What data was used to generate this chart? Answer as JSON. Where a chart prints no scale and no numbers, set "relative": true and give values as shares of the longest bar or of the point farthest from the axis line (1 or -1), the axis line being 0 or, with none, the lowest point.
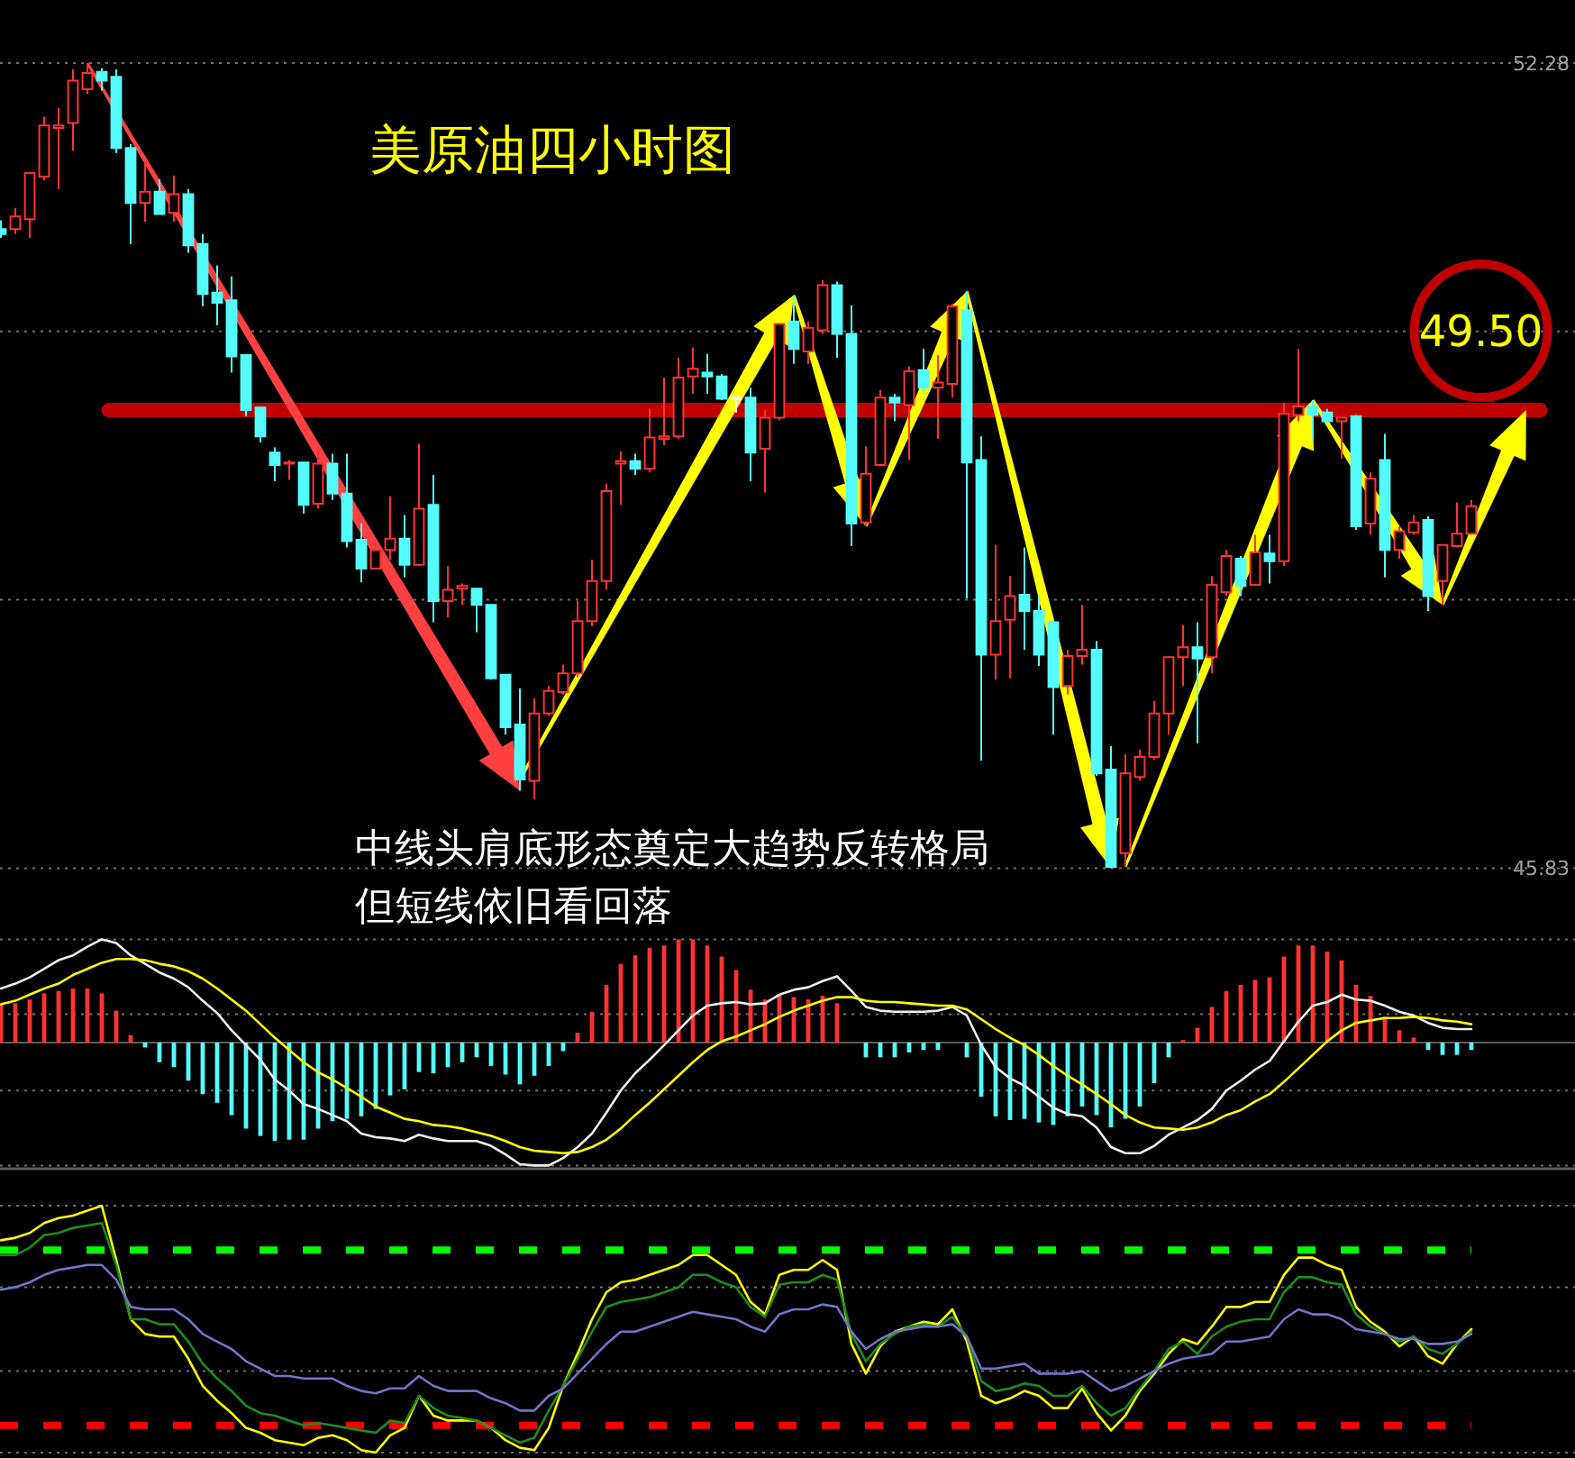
{
  "chart_data": [
    {
      "type": "candlestick",
      "title": "美原油四小时图",
      "categories": [
        null,
        null,
        null,
        null,
        null,
        null,
        null,
        null,
        null,
        null,
        null,
        null,
        null,
        null,
        null,
        null,
        null,
        null,
        null,
        null,
        null,
        null,
        null,
        null,
        null,
        null,
        null,
        null,
        null,
        null,
        null,
        null,
        null,
        null,
        null,
        null,
        null,
        null,
        null,
        null,
        null,
        null,
        null,
        null,
        null,
        null,
        null,
        null,
        null,
        null,
        null,
        null,
        null,
        null,
        null,
        null,
        null,
        null,
        null,
        null,
        null,
        null,
        null,
        null,
        null,
        null,
        null,
        null,
        null,
        null,
        null,
        null,
        null,
        null,
        null,
        null,
        null,
        null,
        null,
        null,
        null,
        null,
        null,
        null,
        null,
        null,
        null,
        null,
        null,
        null,
        null,
        null,
        null,
        null,
        null,
        null,
        null,
        null,
        null,
        null,
        null,
        null,
        null
      ],
      "ohlc": [
        [
          50.95,
          51.02,
          50.88,
          50.91
        ],
        [
          50.95,
          51.12,
          50.91,
          51.05
        ],
        [
          51.03,
          51.41,
          50.88,
          51.4
        ],
        [
          51.37,
          51.85,
          51.34,
          51.78
        ],
        [
          51.76,
          51.92,
          51.27,
          51.78
        ],
        [
          51.8,
          52.23,
          51.58,
          52.14
        ],
        [
          52.07,
          52.28,
          52.03,
          52.2
        ],
        [
          52.21,
          52.24,
          52.06,
          52.14
        ],
        [
          52.17,
          52.23,
          51.56,
          51.6
        ],
        [
          51.6,
          51.63,
          50.83,
          51.16
        ],
        [
          51.16,
          51.49,
          51.01,
          51.25
        ],
        [
          51.25,
          51.35,
          51.07,
          51.07
        ],
        [
          51.08,
          51.38,
          51.01,
          51.23
        ],
        [
          51.23,
          51.27,
          50.76,
          50.82
        ],
        [
          50.83,
          50.91,
          50.33,
          50.43
        ],
        [
          50.44,
          50.66,
          50.18,
          50.36
        ],
        [
          50.38,
          50.57,
          49.8,
          49.93
        ],
        [
          49.94,
          49.94,
          49.45,
          49.5
        ],
        [
          49.52,
          49.52,
          49.24,
          49.29
        ],
        [
          49.16,
          49.2,
          48.93,
          49.06
        ],
        [
          49.07,
          49.1,
          48.94,
          49.08
        ],
        [
          49.08,
          49.08,
          48.67,
          48.74
        ],
        [
          48.75,
          49.17,
          48.71,
          49.07
        ],
        [
          49.07,
          49.15,
          48.78,
          48.83
        ],
        [
          48.83,
          49.15,
          48.4,
          48.45
        ],
        [
          48.46,
          48.59,
          48.12,
          48.23
        ],
        [
          48.23,
          48.42,
          48.23,
          48.38
        ],
        [
          48.38,
          48.81,
          48.3,
          48.47
        ],
        [
          48.47,
          48.66,
          48.16,
          48.26
        ],
        [
          48.26,
          49.23,
          48.25,
          48.71
        ],
        [
          48.74,
          48.98,
          47.8,
          47.97
        ],
        [
          47.97,
          48.25,
          47.84,
          48.06
        ],
        [
          48.07,
          48.11,
          47.94,
          48.09
        ],
        [
          48.07,
          48.07,
          47.72,
          47.94
        ],
        [
          47.94,
          47.94,
          47.34,
          47.35
        ],
        [
          47.38,
          47.38,
          46.9,
          46.96
        ],
        [
          46.98,
          47.27,
          46.45,
          46.54
        ],
        [
          46.53,
          47.19,
          46.38,
          47.07
        ],
        [
          47.07,
          47.29,
          47.05,
          47.25
        ],
        [
          47.24,
          47.46,
          47.22,
          47.39
        ],
        [
          47.39,
          47.97,
          47.36,
          47.81
        ],
        [
          47.81,
          48.3,
          47.77,
          48.13
        ],
        [
          48.13,
          48.91,
          48.06,
          48.85
        ],
        [
          49.07,
          49.17,
          48.74,
          49.09
        ],
        [
          49.09,
          49.15,
          48.98,
          49.03
        ],
        [
          49.03,
          49.51,
          49.0,
          49.28
        ],
        [
          49.27,
          49.76,
          49.22,
          49.29
        ],
        [
          49.29,
          49.92,
          49.27,
          49.76
        ],
        [
          49.77,
          50.0,
          49.63,
          49.83
        ],
        [
          49.8,
          49.95,
          49.63,
          49.77
        ],
        [
          49.77,
          49.79,
          49.58,
          49.59
        ],
        [
          49.6,
          49.6,
          49.48,
          49.6
        ],
        [
          49.6,
          49.68,
          48.93,
          49.16
        ],
        [
          49.19,
          49.5,
          48.84,
          49.44
        ],
        [
          49.44,
          50.19,
          49.42,
          50.19
        ],
        [
          50.21,
          50.42,
          49.87,
          49.99
        ],
        [
          49.97,
          50.21,
          49.87,
          50.16
        ],
        [
          50.14,
          50.54,
          50.11,
          50.5
        ],
        [
          50.5,
          50.53,
          49.92,
          50.11
        ],
        [
          50.11,
          50.34,
          48.41,
          48.59
        ],
        [
          48.6,
          49.21,
          48.57,
          48.99
        ],
        [
          49.06,
          49.66,
          49.05,
          49.6
        ],
        [
          49.6,
          49.63,
          49.41,
          49.56
        ],
        [
          49.54,
          49.85,
          49.1,
          49.81
        ],
        [
          49.82,
          49.99,
          49.63,
          49.68
        ],
        [
          49.68,
          49.94,
          49.27,
          49.72
        ],
        [
          49.71,
          50.35,
          49.6,
          50.33
        ],
        [
          50.3,
          50.45,
          47.99,
          49.08
        ],
        [
          49.1,
          49.29,
          46.69,
          47.54
        ],
        [
          47.54,
          48.42,
          47.34,
          47.81
        ],
        [
          47.82,
          48.17,
          47.35,
          48.01
        ],
        [
          48.02,
          48.4,
          47.58,
          47.89
        ],
        [
          47.89,
          48.01,
          47.45,
          47.54
        ],
        [
          47.8,
          47.82,
          46.9,
          47.28
        ],
        [
          47.29,
          47.58,
          47.22,
          47.53
        ],
        [
          47.53,
          47.94,
          47.46,
          47.58
        ],
        [
          47.58,
          47.65,
          46.57,
          46.59
        ],
        [
          46.62,
          46.81,
          45.83,
          45.84
        ],
        [
          45.95,
          46.74,
          45.84,
          46.59
        ],
        [
          46.56,
          46.78,
          46.53,
          46.72
        ],
        [
          46.72,
          47.17,
          46.7,
          47.07
        ],
        [
          47.07,
          47.53,
          46.9,
          47.52
        ],
        [
          47.52,
          47.78,
          47.29,
          47.6
        ],
        [
          47.6,
          47.8,
          46.83,
          47.51
        ],
        [
          47.52,
          48.17,
          47.39,
          48.1
        ],
        [
          48.04,
          48.38,
          48.01,
          48.33
        ],
        [
          48.31,
          48.33,
          48.01,
          48.09
        ],
        [
          48.1,
          48.5,
          48.09,
          48.36
        ],
        [
          48.35,
          48.5,
          48.11,
          48.29
        ],
        [
          48.29,
          49.56,
          48.25,
          49.47
        ],
        [
          49.46,
          49.99,
          49.41,
          49.53
        ],
        [
          49.53,
          49.58,
          49.27,
          49.46
        ],
        [
          49.48,
          49.51,
          49.39,
          49.41
        ],
        [
          49.41,
          49.44,
          49.11,
          49.44
        ],
        [
          49.45,
          49.46,
          48.54,
          48.57
        ],
        [
          48.59,
          49.0,
          48.5,
          48.95
        ],
        [
          49.1,
          49.31,
          48.16,
          48.38
        ],
        [
          48.38,
          48.57,
          48.31,
          48.53
        ],
        [
          48.52,
          48.66,
          48.5,
          48.6
        ],
        [
          48.62,
          48.65,
          47.89,
          48.01
        ],
        [
          48.13,
          48.42,
          47.94,
          48.42
        ],
        [
          48.41,
          48.76,
          48.4,
          48.51
        ],
        [
          48.51,
          48.78,
          48.5,
          48.73
        ]
      ],
      "colors": [
        "#54fcfc",
        "#ff3232",
        "#ff3232",
        "#ff3232",
        "#ff3232",
        "#ff3232",
        "#ff3232",
        "#54fcfc",
        "#54fcfc",
        "#54fcfc",
        "#ff3232",
        "#54fcfc",
        "#ff3232",
        "#54fcfc",
        "#54fcfc",
        "#54fcfc",
        "#54fcfc",
        "#54fcfc",
        "#54fcfc",
        "#54fcfc",
        "#ff3232",
        "#54fcfc",
        "#ff3232",
        "#54fcfc",
        "#54fcfc",
        "#54fcfc",
        "#ff3232",
        "#ff3232",
        "#54fcfc",
        "#ff3232",
        "#54fcfc",
        "#ff3232",
        "#ff3232",
        "#54fcfc",
        "#54fcfc",
        "#54fcfc",
        "#54fcfc",
        "#ff3232",
        "#ff3232",
        "#ff3232",
        "#ff3232",
        "#ff3232",
        "#ff3232",
        "#ff3232",
        "#54fcfc",
        "#ff3232",
        "#ff3232",
        "#ff3232",
        "#ff3232",
        "#54fcfc",
        "#54fcfc",
        "#ffffff",
        "#54fcfc",
        "#ff3232",
        "#ff3232",
        "#54fcfc",
        "#ff3232",
        "#ff3232",
        "#54fcfc",
        "#54fcfc",
        "#ff3232",
        "#ff3232",
        "#54fcfc",
        "#ff3232",
        "#54fcfc",
        "#ff3232",
        "#ff3232",
        "#54fcfc",
        "#54fcfc",
        "#ff3232",
        "#ff3232",
        "#54fcfc",
        "#54fcfc",
        "#54fcfc",
        "#ff3232",
        "#ff3232",
        "#54fcfc",
        "#54fcfc",
        "#ff3232",
        "#ff3232",
        "#ff3232",
        "#ff3232",
        "#ff3232",
        "#54fcfc",
        "#ff3232",
        "#ff3232",
        "#54fcfc",
        "#ff3232",
        "#54fcfc",
        "#ff3232",
        "#ff3232",
        "#54fcfc",
        "#54fcfc",
        "#ff3232",
        "#54fcfc",
        "#ff3232",
        "#54fcfc",
        "#ff3232",
        "#ff3232",
        "#54fcfc",
        "#ff3232",
        "#ff3232",
        "#ff3232"
      ],
      "ylim": [
        45.83,
        52.28
      ],
      "yticks": [
        {
          "value": 52.28,
          "label": "52.28"
        },
        {
          "value": 50.13,
          "label": null
        },
        {
          "value": 47.98,
          "label": null
        },
        {
          "value": 45.83,
          "label": "45.83"
        }
      ],
      "grid": "y",
      "ref_lines": [
        {
          "axis": "y",
          "value": 49.5,
          "label": "49.50",
          "color": "#c00000"
        }
      ],
      "annotations": [
        "中线头肩底形态奠定大趋势反转格局",
        "但短线依旧看回落"
      ]
    },
    {
      "type": "line",
      "relative": true,
      "categories": [
        null,
        null,
        null,
        null,
        null,
        null,
        null,
        null,
        null,
        null,
        null,
        null,
        null,
        null,
        null,
        null,
        null,
        null,
        null,
        null,
        null,
        null,
        null,
        null,
        null,
        null,
        null,
        null,
        null,
        null,
        null,
        null,
        null,
        null,
        null,
        null,
        null,
        null,
        null,
        null,
        null,
        null,
        null,
        null,
        null,
        null,
        null,
        null,
        null,
        null,
        null,
        null,
        null,
        null,
        null,
        null,
        null,
        null,
        null,
        null,
        null,
        null,
        null,
        null,
        null,
        null,
        null,
        null,
        null,
        null,
        null,
        null,
        null,
        null,
        null,
        null,
        null,
        null,
        null,
        null,
        null,
        null,
        null,
        null,
        null,
        null,
        null,
        null,
        null,
        null,
        null,
        null,
        null,
        null,
        null,
        null,
        null,
        null,
        null,
        null,
        null,
        null,
        null
      ],
      "series": [
        {
          "type": "bar",
          "values": [
            0.31,
            0.32,
            0.35,
            0.4,
            0.42,
            0.44,
            0.44,
            0.4,
            0.26,
            0.06,
            -0.04,
            -0.16,
            -0.2,
            -0.31,
            -0.42,
            -0.49,
            -0.59,
            -0.7,
            -0.76,
            -0.8,
            -0.79,
            -0.79,
            -0.7,
            -0.64,
            -0.62,
            -0.6,
            -0.54,
            -0.43,
            -0.38,
            -0.24,
            -0.25,
            -0.2,
            -0.16,
            -0.12,
            -0.19,
            -0.26,
            -0.34,
            -0.27,
            -0.19,
            -0.07,
            0.08,
            0.25,
            0.47,
            0.64,
            0.71,
            0.77,
            0.79,
            0.84,
            0.84,
            0.79,
            0.7,
            0.59,
            0.43,
            0.35,
            0.39,
            0.37,
            0.35,
            0.38,
            0.32,
            null,
            -0.12,
            -0.12,
            -0.12,
            -0.08,
            -0.06,
            -0.06,
            null,
            -0.12,
            -0.44,
            -0.6,
            -0.63,
            -0.62,
            -0.65,
            -0.67,
            -0.6,
            -0.52,
            -0.59,
            -0.69,
            -0.62,
            -0.52,
            -0.33,
            -0.12,
            0.02,
            0.12,
            0.29,
            0.42,
            0.47,
            0.51,
            0.53,
            0.7,
            0.79,
            0.79,
            0.74,
            0.67,
            0.47,
            0.38,
            0.21,
            0.1,
            0.04,
            -0.06,
            -0.1,
            -0.1,
            -0.06
          ],
          "colors": [
            "#ff3232",
            "#ff3232",
            "#ff3232",
            "#ff3232",
            "#ff3232",
            "#ff3232",
            "#ff3232",
            "#ff3232",
            "#ff3232",
            "#ff3232",
            "#54fcfc",
            "#54fcfc",
            "#54fcfc",
            "#54fcfc",
            "#54fcfc",
            "#54fcfc",
            "#54fcfc",
            "#54fcfc",
            "#54fcfc",
            "#54fcfc",
            "#54fcfc",
            "#54fcfc",
            "#54fcfc",
            "#54fcfc",
            "#54fcfc",
            "#54fcfc",
            "#54fcfc",
            "#54fcfc",
            "#54fcfc",
            "#54fcfc",
            "#54fcfc",
            "#54fcfc",
            "#54fcfc",
            "#54fcfc",
            "#54fcfc",
            "#54fcfc",
            "#54fcfc",
            "#54fcfc",
            "#54fcfc",
            "#54fcfc",
            "#ff3232",
            "#ff3232",
            "#ff3232",
            "#ff3232",
            "#ff3232",
            "#ff3232",
            "#ff3232",
            "#ff3232",
            "#ff3232",
            "#ff3232",
            "#ff3232",
            "#ff3232",
            "#ff3232",
            "#ff3232",
            "#ff3232",
            "#ff3232",
            "#ff3232",
            "#ff3232",
            "#ff3232",
            null,
            "#54fcfc",
            "#54fcfc",
            "#54fcfc",
            "#54fcfc",
            "#54fcfc",
            "#54fcfc",
            null,
            "#54fcfc",
            "#54fcfc",
            "#54fcfc",
            "#54fcfc",
            "#54fcfc",
            "#54fcfc",
            "#54fcfc",
            "#54fcfc",
            "#54fcfc",
            "#54fcfc",
            "#54fcfc",
            "#54fcfc",
            "#54fcfc",
            "#54fcfc",
            "#54fcfc",
            "#ff3232",
            "#ff3232",
            "#ff3232",
            "#ff3232",
            "#ff3232",
            "#ff3232",
            "#ff3232",
            "#ff3232",
            "#ff3232",
            "#ff3232",
            "#ff3232",
            "#ff3232",
            "#ff3232",
            "#ff3232",
            "#ff3232",
            "#ff3232",
            "#ff3232",
            "#54fcfc",
            "#54fcfc",
            "#54fcfc",
            "#54fcfc"
          ]
        },
        {
          "type": "line",
          "color": "#eeeeee",
          "values": [
            0.44,
            0.48,
            0.53,
            0.6,
            0.67,
            0.71,
            0.78,
            0.84,
            0.81,
            0.71,
            0.64,
            0.57,
            0.52,
            0.45,
            0.34,
            0.24,
            0.1,
            -0.02,
            -0.14,
            -0.3,
            -0.39,
            -0.5,
            -0.54,
            -0.59,
            -0.64,
            -0.74,
            -0.77,
            -0.78,
            -0.8,
            -0.75,
            -0.78,
            -0.8,
            -0.8,
            -0.8,
            -0.84,
            -0.91,
            -0.99,
            -1.0,
            -1.0,
            -0.94,
            -0.85,
            -0.74,
            -0.57,
            -0.39,
            -0.25,
            -0.14,
            -0.02,
            0.1,
            0.22,
            0.3,
            0.32,
            0.33,
            0.31,
            0.32,
            0.39,
            0.43,
            0.45,
            0.5,
            0.54,
            0.42,
            0.29,
            0.26,
            0.25,
            0.25,
            0.25,
            0.26,
            0.29,
            0.22,
            -0.02,
            -0.2,
            -0.29,
            -0.35,
            -0.44,
            -0.53,
            -0.58,
            -0.6,
            -0.69,
            -0.85,
            -0.9,
            -0.9,
            -0.84,
            -0.75,
            -0.69,
            -0.63,
            -0.54,
            -0.39,
            -0.31,
            -0.22,
            -0.15,
            0.01,
            0.17,
            0.3,
            0.33,
            0.39,
            0.35,
            0.34,
            0.3,
            0.25,
            0.22,
            0.16,
            0.12,
            0.11,
            0.11
          ]
        },
        {
          "type": "line",
          "color": "#ffff00",
          "values": [
            0.31,
            0.34,
            0.39,
            0.44,
            0.48,
            0.55,
            0.6,
            0.65,
            0.68,
            0.68,
            0.67,
            0.64,
            0.62,
            0.58,
            0.52,
            0.44,
            0.35,
            0.26,
            0.15,
            0.04,
            -0.06,
            -0.16,
            -0.24,
            -0.3,
            -0.37,
            -0.44,
            -0.52,
            -0.57,
            -0.62,
            -0.64,
            -0.67,
            -0.68,
            -0.7,
            -0.73,
            -0.76,
            -0.8,
            -0.85,
            -0.88,
            -0.89,
            -0.9,
            -0.89,
            -0.85,
            -0.79,
            -0.7,
            -0.59,
            -0.49,
            -0.38,
            -0.27,
            -0.16,
            -0.06,
            0.01,
            0.05,
            0.1,
            0.15,
            0.21,
            0.26,
            0.3,
            0.34,
            0.37,
            0.37,
            0.34,
            0.33,
            0.33,
            0.32,
            0.31,
            0.3,
            0.3,
            0.27,
            0.19,
            0.11,
            0.04,
            -0.02,
            -0.1,
            -0.19,
            -0.27,
            -0.34,
            -0.42,
            -0.5,
            -0.59,
            -0.65,
            -0.69,
            -0.7,
            -0.71,
            -0.69,
            -0.65,
            -0.59,
            -0.55,
            -0.48,
            -0.42,
            -0.32,
            -0.21,
            -0.1,
            0.01,
            0.1,
            0.16,
            0.18,
            0.2,
            0.2,
            0.21,
            0.2,
            0.18,
            0.17,
            0.15
          ]
        }
      ],
      "ref_lines": [
        {
          "axis": "y",
          "value": 0.84,
          "color": "#707070",
          "line_style": "dotted"
        },
        {
          "axis": "y",
          "value": 0.23,
          "color": "#707070",
          "line_style": "dotted"
        },
        {
          "axis": "y",
          "value": -0.39,
          "color": "#707070",
          "line_style": "dotted"
        },
        {
          "axis": "y",
          "value": -1,
          "color": "#707070",
          "line_style": "dotted"
        }
      ]
    },
    {
      "type": "line",
      "relative": true,
      "categories": [
        null,
        null,
        null,
        null,
        null,
        null,
        null,
        null,
        null,
        null,
        null,
        null,
        null,
        null,
        null,
        null,
        null,
        null,
        null,
        null,
        null,
        null,
        null,
        null,
        null,
        null,
        null,
        null,
        null,
        null,
        null,
        null,
        null,
        null,
        null,
        null,
        null,
        null,
        null,
        null,
        null,
        null,
        null,
        null,
        null,
        null,
        null,
        null,
        null,
        null,
        null,
        null,
        null,
        null,
        null,
        null,
        null,
        null,
        null,
        null,
        null,
        null,
        null,
        null,
        null,
        null,
        null,
        null,
        null,
        null,
        null,
        null,
        null,
        null,
        null,
        null,
        null,
        null,
        null,
        null,
        null,
        null,
        null,
        null,
        null,
        null,
        null,
        null,
        null,
        null,
        null,
        null,
        null,
        null,
        null,
        null,
        null,
        null,
        null,
        null,
        null,
        null,
        null
      ],
      "series": [
        {
          "color": "#ffff00",
          "values": [
            0.86,
            0.87,
            0.89,
            0.93,
            0.95,
            0.96,
            0.98,
            1.0,
            0.78,
            0.54,
            0.48,
            0.47,
            0.47,
            0.38,
            0.27,
            0.21,
            0.16,
            0.1,
            0.08,
            0.05,
            0.04,
            0.03,
            0.06,
            0.07,
            0.05,
            0.01,
            0.0,
            0.07,
            0.1,
            0.23,
            0.15,
            0.13,
            0.13,
            0.13,
            0.1,
            0.05,
            0.02,
            0.01,
            0.1,
            0.27,
            0.4,
            0.54,
            0.65,
            0.69,
            0.7,
            0.72,
            0.74,
            0.76,
            0.8,
            0.8,
            0.76,
            0.72,
            0.61,
            0.56,
            0.72,
            0.74,
            0.74,
            0.78,
            0.74,
            0.44,
            0.32,
            0.43,
            0.49,
            0.51,
            0.53,
            0.52,
            0.58,
            0.45,
            0.23,
            0.2,
            0.22,
            0.25,
            0.23,
            0.18,
            0.18,
            0.26,
            0.16,
            0.09,
            0.15,
            0.25,
            0.32,
            0.4,
            0.46,
            0.44,
            0.51,
            0.59,
            0.59,
            0.61,
            0.61,
            0.72,
            0.79,
            0.79,
            0.76,
            0.74,
            0.59,
            0.53,
            0.49,
            0.43,
            0.47,
            0.39,
            0.36,
            0.44,
            0.5
          ]
        },
        {
          "color": "#1e8c1e",
          "values": [
            0.8,
            0.8,
            0.83,
            0.88,
            0.89,
            0.91,
            0.92,
            0.93,
            0.76,
            0.54,
            0.54,
            0.52,
            0.52,
            0.45,
            0.36,
            0.3,
            0.25,
            0.19,
            0.16,
            0.15,
            0.13,
            0.11,
            0.12,
            0.11,
            0.1,
            0.09,
            0.08,
            0.13,
            0.12,
            0.23,
            0.18,
            0.15,
            0.14,
            0.13,
            0.1,
            0.07,
            0.04,
            0.06,
            0.17,
            0.27,
            0.38,
            0.49,
            0.59,
            0.61,
            0.62,
            0.63,
            0.65,
            0.67,
            0.72,
            0.72,
            0.69,
            0.67,
            0.59,
            0.55,
            0.68,
            0.69,
            0.69,
            0.72,
            0.7,
            0.48,
            0.37,
            0.44,
            0.48,
            0.51,
            0.52,
            0.51,
            0.55,
            0.47,
            0.29,
            0.25,
            0.26,
            0.28,
            0.27,
            0.23,
            0.23,
            0.27,
            0.2,
            0.15,
            0.18,
            0.26,
            0.33,
            0.42,
            0.45,
            0.4,
            0.47,
            0.51,
            0.53,
            0.54,
            0.54,
            0.65,
            0.71,
            0.71,
            0.69,
            0.68,
            0.56,
            0.51,
            0.48,
            0.45,
            0.47,
            0.42,
            0.4,
            0.44,
            0.49
          ]
        },
        {
          "color": "#7373c8",
          "values": [
            0.66,
            0.67,
            0.69,
            0.72,
            0.74,
            0.75,
            0.76,
            0.76,
            0.7,
            0.59,
            0.58,
            0.58,
            0.58,
            0.54,
            0.48,
            0.45,
            0.42,
            0.37,
            0.34,
            0.31,
            0.31,
            0.3,
            0.3,
            0.3,
            0.27,
            0.25,
            0.24,
            0.26,
            0.26,
            0.31,
            0.27,
            0.25,
            0.25,
            0.25,
            0.22,
            0.2,
            0.17,
            0.17,
            0.23,
            0.26,
            0.32,
            0.38,
            0.44,
            0.49,
            0.49,
            0.51,
            0.53,
            0.55,
            0.57,
            0.56,
            0.55,
            0.54,
            0.51,
            0.49,
            0.56,
            0.58,
            0.58,
            0.6,
            0.59,
            0.49,
            0.42,
            0.46,
            0.49,
            0.5,
            0.51,
            0.51,
            0.52,
            0.47,
            0.34,
            0.34,
            0.35,
            0.36,
            0.32,
            0.32,
            0.32,
            0.33,
            0.29,
            0.25,
            0.27,
            0.3,
            0.33,
            0.36,
            0.38,
            0.39,
            0.4,
            0.45,
            0.45,
            0.46,
            0.47,
            0.54,
            0.58,
            0.56,
            0.56,
            0.54,
            0.5,
            0.49,
            0.48,
            0.46,
            0.46,
            0.44,
            0.44,
            0.45,
            0.48
          ]
        }
      ],
      "ref_lines": [
        {
          "axis": "y",
          "value": 1,
          "color": "#707070",
          "line_style": "dotted"
        },
        {
          "axis": "y",
          "value": 0.67,
          "color": "#707070",
          "line_style": "dotted"
        },
        {
          "axis": "y",
          "value": 0.33,
          "color": "#707070",
          "line_style": "dotted"
        },
        {
          "axis": "y",
          "value": 0,
          "color": "#707070",
          "line_style": "dotted"
        },
        {
          "axis": "y",
          "value": 0.82,
          "color": "#00ff00",
          "line_style": "dashed"
        },
        {
          "axis": "y",
          "value": 0.11,
          "color": "#ff0000",
          "line_style": "dashed"
        }
      ]
    }
  ]
}
